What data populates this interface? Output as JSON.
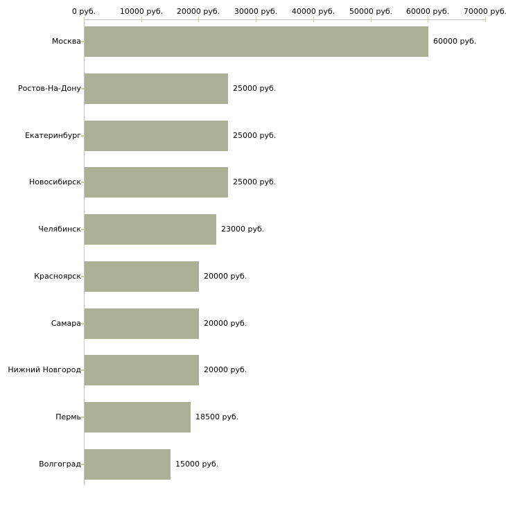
{
  "chart_data": {
    "type": "bar",
    "orientation": "horizontal",
    "title": "",
    "unit": "руб.",
    "categories": [
      "Москва",
      "Ростов-На-Дону",
      "Екатеринбург",
      "Новосибирск",
      "Челябинск",
      "Красноярск",
      "Самара",
      "Нижний Новгород",
      "Пермь",
      "Волгоград"
    ],
    "values": [
      60000,
      25000,
      25000,
      25000,
      23000,
      20000,
      20000,
      20000,
      18500,
      15000
    ],
    "value_labels": [
      "60000 руб.",
      "25000 руб.",
      "25000 руб.",
      "25000 руб.",
      "23000 руб.",
      "20000 руб.",
      "20000 руб.",
      "20000 руб.",
      "18500 руб.",
      "15000 руб."
    ],
    "x_axis": {
      "min": 0,
      "max": 70000,
      "tick_interval": 10000,
      "tick_labels": [
        "0 руб.",
        "10000 руб.",
        "20000 руб.",
        "30000 руб.",
        "40000 руб.",
        "50000 руб.",
        "60000 руб.",
        "70000 руб."
      ]
    },
    "legend": "none",
    "grid": "off",
    "colors": {
      "bar": "#abb096",
      "axis_line": "#c3c3c3",
      "tick_mark": "#cdc9a3",
      "text": "#000000",
      "background": "#ffffff"
    }
  }
}
